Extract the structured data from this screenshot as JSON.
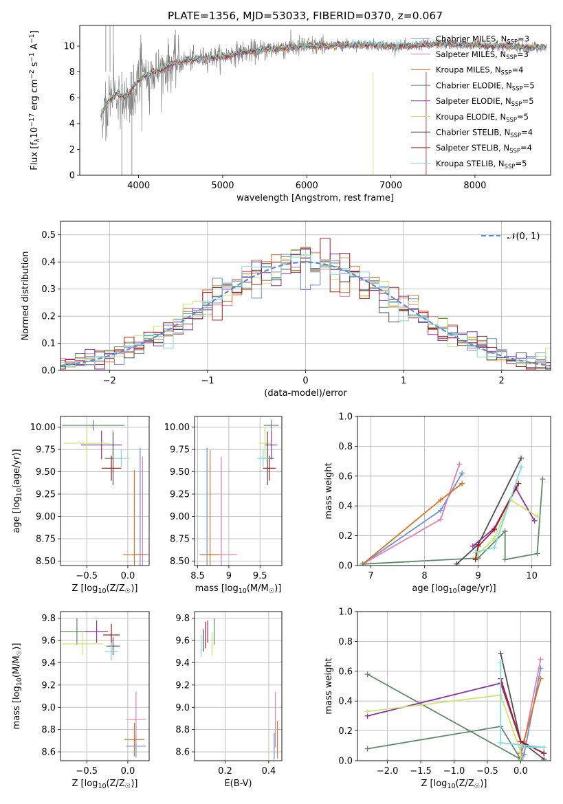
{
  "figure_title": "PLATE=1356, MJD=53033, FIBERID=0370, z=0.067",
  "models": [
    {
      "name": "Chabrier MILES, N",
      "sub": "SSP",
      "suffix": "=3",
      "color": "#6a8fd9"
    },
    {
      "name": "Salpeter MILES, N",
      "sub": "SSP",
      "suffix": "=3",
      "color": "#e47fb6"
    },
    {
      "name": "Kroupa MILES, N",
      "sub": "SSP",
      "suffix": "=4",
      "color": "#d9731f"
    },
    {
      "name": "Chabrier ELODIE, N",
      "sub": "SSP",
      "suffix": "=5",
      "color": "#5e8a66"
    },
    {
      "name": "Salpeter ELODIE, N",
      "sub": "SSP",
      "suffix": "=5",
      "color": "#8e2fa8"
    },
    {
      "name": "Kroupa ELODIE, N",
      "sub": "SSP",
      "suffix": "=5",
      "color": "#c9e86b"
    },
    {
      "name": "Chabrier STELIB, N",
      "sub": "SSP",
      "suffix": "=4",
      "color": "#4d4d4d"
    },
    {
      "name": "Salpeter STELIB, N",
      "sub": "SSP",
      "suffix": "=4",
      "color": "#a81c1c"
    },
    {
      "name": "Kroupa STELIB, N",
      "sub": "SSP",
      "suffix": "=5",
      "color": "#7fd9e0"
    }
  ],
  "data_color": "#808080",
  "chart_data": [
    {
      "id": "spectrum",
      "type": "line",
      "xlabel": "wavelength [Angstrom, rest frame]",
      "ylabel_parts": {
        "a": "Flux [f",
        "sub": "λ",
        "b": "10",
        "sup1": "−17",
        "c": " erg cm",
        "sup2": "−2",
        "d": " s",
        "sup3": "−1",
        "e": " A",
        "sup4": "−1",
        "f": "]"
      },
      "xlim": [
        3300,
        8900
      ],
      "ylim": [
        0,
        11.6
      ],
      "xticks": [
        4000,
        5000,
        6000,
        7000,
        8000
      ],
      "yticks": [
        0,
        2,
        4,
        6,
        8,
        10
      ],
      "grid": false,
      "legend": "right",
      "continuum_x": [
        3550,
        3650,
        3750,
        3850,
        3950,
        4050,
        4200,
        4400,
        4600,
        4800,
        5000,
        5200,
        5400,
        5600,
        5800,
        6000,
        6200,
        6400,
        6600,
        6800,
        7000,
        7200,
        7400,
        7600,
        7800,
        8000,
        8200,
        8400,
        8600,
        8800
      ],
      "continuum_y": [
        4.6,
        5.8,
        6.3,
        6.0,
        7.0,
        7.6,
        8.0,
        8.6,
        8.9,
        9.1,
        9.2,
        9.5,
        9.6,
        9.8,
        9.9,
        10.0,
        10.0,
        10.1,
        10.1,
        10.1,
        10.0,
        10.0,
        10.1,
        10.2,
        10.1,
        10.1,
        10.0,
        10.0,
        9.9,
        9.9
      ]
    },
    {
      "id": "residuals",
      "type": "histogram",
      "xlabel": "(data-model)/error",
      "ylabel": "Normed distribution",
      "xlim": [
        -2.5,
        2.5
      ],
      "ylim": [
        0,
        0.55
      ],
      "xticks": [
        -2,
        -1,
        0,
        1,
        2
      ],
      "yticks": [
        0.0,
        0.1,
        0.2,
        0.3,
        0.4,
        0.5
      ],
      "grid": true,
      "legend": "top-right",
      "gaussian_label": "𝒩(0, 1)",
      "bin_width": 0.1
    },
    {
      "id": "age-vs-Z",
      "type": "errorbar",
      "xlabel_parts": {
        "a": "Z [log",
        "sub": "10",
        "b": "(Z/Z",
        "sub2": "☉",
        "c": ")]"
      },
      "ylabel_parts": {
        "a": "age  [log",
        "sub": "10",
        "b": "(age/yr)]"
      },
      "xlim": [
        -0.82,
        0.26
      ],
      "ylim": [
        8.45,
        10.12
      ],
      "xticks": [
        -0.5,
        0.0
      ],
      "yticks": [
        8.5,
        8.75,
        9.0,
        9.25,
        9.5,
        9.75,
        10.0
      ],
      "points": [
        {
          "m": 0,
          "x": 0.15,
          "y": 8.57,
          "xerr": 0.1,
          "yerr": 1.2
        },
        {
          "m": 1,
          "x": 0.18,
          "y": 8.57,
          "xerr": 0.1,
          "yerr": 1.1
        },
        {
          "m": 2,
          "x": 0.08,
          "y": 8.57,
          "xerr": 0.14,
          "yerr": 0.95
        },
        {
          "m": 3,
          "x": -0.42,
          "y": 10.02,
          "xerr": 0.38,
          "yerr": 0.06
        },
        {
          "m": 4,
          "x": -0.32,
          "y": 9.8,
          "xerr": 0.25,
          "yerr": 0.16
        },
        {
          "m": 5,
          "x": -0.5,
          "y": 9.82,
          "xerr": 0.28,
          "yerr": 0.18
        },
        {
          "m": 6,
          "x": -0.18,
          "y": 9.65,
          "xerr": 0.1,
          "yerr": 0.3
        },
        {
          "m": 7,
          "x": -0.2,
          "y": 9.54,
          "xerr": 0.12,
          "yerr": 0.14
        },
        {
          "m": 8,
          "x": -0.08,
          "y": 9.65,
          "xerr": 0.1,
          "yerr": 0.1
        }
      ]
    },
    {
      "id": "age-vs-mass",
      "type": "errorbar",
      "xlabel_parts": {
        "a": "mass [log",
        "sub": "10",
        "b": "(M/M",
        "sub2": "☉",
        "c": ")]"
      },
      "ylabel_parts": null,
      "xlim": [
        8.45,
        9.85
      ],
      "ylim": [
        8.45,
        10.12
      ],
      "xticks": [
        8.5,
        9.0,
        9.5
      ],
      "yticks": [
        8.5,
        8.75,
        9.0,
        9.25,
        9.5,
        9.75,
        10.0
      ],
      "points": [
        {
          "m": 0,
          "x": 8.65,
          "y": 8.57,
          "xerr": 0.12,
          "yerr": 1.2
        },
        {
          "m": 1,
          "x": 8.88,
          "y": 8.57,
          "xerr": 0.25,
          "yerr": 1.1
        },
        {
          "m": 2,
          "x": 8.7,
          "y": 8.57,
          "xerr": 0.15,
          "yerr": 1.17
        },
        {
          "m": 3,
          "x": 9.68,
          "y": 10.02,
          "xerr": 0.12,
          "yerr": 0.06
        },
        {
          "m": 4,
          "x": 9.68,
          "y": 9.8,
          "xerr": 0.1,
          "yerr": 0.16
        },
        {
          "m": 5,
          "x": 9.58,
          "y": 9.82,
          "xerr": 0.1,
          "yerr": 0.18
        },
        {
          "m": 6,
          "x": 9.62,
          "y": 9.65,
          "xerr": 0.1,
          "yerr": 0.3
        },
        {
          "m": 7,
          "x": 9.65,
          "y": 9.54,
          "xerr": 0.1,
          "yerr": 0.14
        },
        {
          "m": 8,
          "x": 9.55,
          "y": 9.65,
          "xerr": 0.1,
          "yerr": 0.1
        }
      ]
    },
    {
      "id": "weight-vs-age",
      "type": "line",
      "xlabel_parts": {
        "a": "age  [log",
        "sub": "10",
        "b": "(age/yr)]"
      },
      "ylabel": "mass weight",
      "xlim": [
        6.75,
        10.35
      ],
      "ylim": [
        0,
        1.0
      ],
      "xticks": [
        7,
        8,
        9,
        10
      ],
      "yticks": [
        0.0,
        0.2,
        0.4,
        0.6,
        0.8,
        1.0
      ],
      "grid": true,
      "series": [
        {
          "m": 0,
          "x": [
            6.85,
            8.3,
            8.7
          ],
          "y": [
            0.01,
            0.37,
            0.62
          ]
        },
        {
          "m": 1,
          "x": [
            6.85,
            8.3,
            8.65
          ],
          "y": [
            0.01,
            0.31,
            0.68
          ]
        },
        {
          "m": 2,
          "x": [
            6.85,
            8.3,
            8.7
          ],
          "y": [
            0.01,
            0.44,
            0.55
          ]
        },
        {
          "m": 3,
          "x": [
            6.85,
            9.0,
            9.5,
            9.5,
            10.1,
            10.2
          ],
          "y": [
            0.01,
            0.05,
            0.23,
            0.04,
            0.08,
            0.58
          ]
        },
        {
          "m": 4,
          "x": [
            8.9,
            9.3,
            9.7,
            10.05
          ],
          "y": [
            0.13,
            0.25,
            0.52,
            0.3
          ]
        },
        {
          "m": 5,
          "x": [
            8.95,
            9.3,
            9.6,
            10.1
          ],
          "y": [
            0.06,
            0.18,
            0.44,
            0.33
          ]
        },
        {
          "m": 6,
          "x": [
            8.6,
            9.0,
            9.8
          ],
          "y": [
            0.01,
            0.14,
            0.72
          ]
        },
        {
          "m": 7,
          "x": [
            8.95,
            9.0,
            9.3,
            9.75
          ],
          "y": [
            0.04,
            0.13,
            0.24,
            0.55
          ]
        },
        {
          "m": 8,
          "x": [
            8.95,
            9.3,
            9.8
          ],
          "y": [
            0.09,
            0.12,
            0.66
          ]
        }
      ]
    },
    {
      "id": "mass-vs-Z",
      "type": "errorbar",
      "xlabel_parts": {
        "a": "Z [log",
        "sub": "10",
        "b": "(Z/Z",
        "sub2": "☉",
        "c": ")]"
      },
      "ylabel_parts": {
        "a": "mass [log",
        "sub": "10",
        "b": "(M/M",
        "sub2": "☉",
        "c": ")]"
      },
      "xlim": [
        -0.82,
        0.26
      ],
      "ylim": [
        8.52,
        9.86
      ],
      "xticks": [
        -0.5,
        0.0
      ],
      "yticks": [
        8.6,
        8.8,
        9.0,
        9.2,
        9.4,
        9.6,
        9.8
      ],
      "points": [
        {
          "m": 0,
          "x": 0.1,
          "y": 8.65,
          "xerr": 0.12,
          "yerr": 0.1
        },
        {
          "m": 1,
          "x": 0.1,
          "y": 8.89,
          "xerr": 0.12,
          "yerr": 0.25
        },
        {
          "m": 2,
          "x": 0.08,
          "y": 8.71,
          "xerr": 0.12,
          "yerr": 0.15
        },
        {
          "m": 3,
          "x": -0.62,
          "y": 9.68,
          "xerr": 0.2,
          "yerr": 0.12
        },
        {
          "m": 4,
          "x": -0.38,
          "y": 9.68,
          "xerr": 0.14,
          "yerr": 0.1
        },
        {
          "m": 5,
          "x": -0.55,
          "y": 9.57,
          "xerr": 0.25,
          "yerr": 0.1
        },
        {
          "m": 6,
          "x": -0.18,
          "y": 9.55,
          "xerr": 0.08,
          "yerr": 0.08
        },
        {
          "m": 7,
          "x": -0.2,
          "y": 9.65,
          "xerr": 0.1,
          "yerr": 0.1
        },
        {
          "m": 8,
          "x": -0.2,
          "y": 9.5,
          "xerr": 0.08,
          "yerr": 0.08
        }
      ]
    },
    {
      "id": "mass-vs-ebv",
      "type": "errorbar",
      "xlabel_parts": {
        "a": "E(B-V)",
        "sub": "",
        "b": "",
        "sub2": "",
        "c": ""
      },
      "ylabel_parts": null,
      "xlim": [
        0.06,
        0.46
      ],
      "ylim": [
        8.52,
        9.86
      ],
      "xticks": [
        0.2,
        0.4
      ],
      "yticks": [
        8.6,
        8.8,
        9.0,
        9.2,
        9.4,
        9.6,
        9.8
      ],
      "points": [
        {
          "m": 0,
          "x": 0.425,
          "y": 8.65,
          "xerr": 0,
          "yerr": 0.12
        },
        {
          "m": 1,
          "x": 0.43,
          "y": 8.89,
          "xerr": 0,
          "yerr": 0.25
        },
        {
          "m": 2,
          "x": 0.44,
          "y": 8.71,
          "xerr": 0,
          "yerr": 0.17
        },
        {
          "m": 3,
          "x": 0.15,
          "y": 9.68,
          "xerr": 0,
          "yerr": 0.12
        },
        {
          "m": 4,
          "x": 0.12,
          "y": 9.68,
          "xerr": 0,
          "yerr": 0.1
        },
        {
          "m": 5,
          "x": 0.14,
          "y": 9.57,
          "xerr": 0,
          "yerr": 0.1
        },
        {
          "m": 6,
          "x": 0.1,
          "y": 9.6,
          "xerr": 0,
          "yerr": 0.1
        },
        {
          "m": 7,
          "x": 0.11,
          "y": 9.65,
          "xerr": 0,
          "yerr": 0.12
        },
        {
          "m": 8,
          "x": 0.09,
          "y": 9.55,
          "xerr": 0,
          "yerr": 0.1
        }
      ]
    },
    {
      "id": "weight-vs-Z",
      "type": "line",
      "xlabel_parts": {
        "a": "Z [log",
        "sub": "10",
        "b": "(Z/Z",
        "sub2": "☉",
        "c": ")]"
      },
      "ylabel": "mass weight",
      "xlim": [
        -2.45,
        0.45
      ],
      "ylim": [
        0,
        1.0
      ],
      "xticks": [
        -2.0,
        -1.5,
        -1.0,
        -0.5,
        0.0
      ],
      "yticks": [
        0.0,
        0.2,
        0.4,
        0.6,
        0.8,
        1.0
      ],
      "grid": true,
      "series": [
        {
          "m": 0,
          "x": [
            0.0,
            0.05,
            0.3
          ],
          "y": [
            0.01,
            0.04,
            0.62
          ]
        },
        {
          "m": 1,
          "x": [
            0.0,
            0.05,
            0.3
          ],
          "y": [
            0.02,
            0.12,
            0.68
          ]
        },
        {
          "m": 2,
          "x": [
            0.0,
            0.05,
            0.3
          ],
          "y": [
            0.05,
            0.13,
            0.55
          ]
        },
        {
          "m": 3,
          "x": [
            -2.3,
            -0.3,
            0.0,
            -2.3
          ],
          "y": [
            0.08,
            0.23,
            0.01,
            0.58
          ]
        },
        {
          "m": 4,
          "x": [
            -2.3,
            -0.3,
            0.0,
            0.35
          ],
          "y": [
            0.3,
            0.52,
            0.13,
            0.05
          ]
        },
        {
          "m": 5,
          "x": [
            -2.3,
            -0.3,
            0.0,
            0.0
          ],
          "y": [
            0.33,
            0.44,
            0.06,
            0.0
          ]
        },
        {
          "m": 6,
          "x": [
            -0.3,
            0.0,
            0.35
          ],
          "y": [
            0.72,
            0.13,
            0.01
          ]
        },
        {
          "m": 7,
          "x": [
            -0.3,
            0.0,
            0.35
          ],
          "y": [
            0.55,
            0.13,
            0.05
          ]
        },
        {
          "m": 8,
          "x": [
            -0.3,
            -0.3,
            0.35,
            0.0
          ],
          "y": [
            0.66,
            0.12,
            0.09,
            0.09
          ]
        }
      ]
    }
  ]
}
